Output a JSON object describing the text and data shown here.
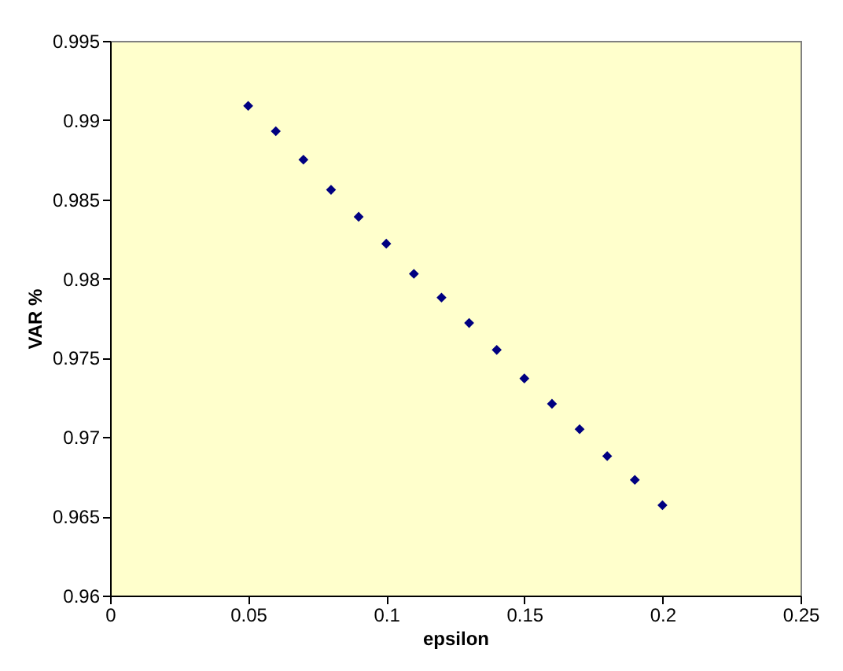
{
  "chart_data": {
    "type": "scatter",
    "xlabel": "epsilon",
    "ylabel": "VAR %",
    "x": [
      0.05,
      0.06,
      0.07,
      0.08,
      0.09,
      0.1,
      0.11,
      0.12,
      0.13,
      0.14,
      0.15,
      0.16,
      0.17,
      0.18,
      0.19,
      0.2
    ],
    "series": [
      {
        "color": "#000080",
        "values": [
          0.9909,
          0.9893,
          0.9875,
          0.9856,
          0.9839,
          0.9822,
          0.9803,
          0.9788,
          0.9772,
          0.9755,
          0.9737,
          0.9721,
          0.9705,
          0.9688,
          0.9673,
          0.9657
        ]
      }
    ],
    "xlim": [
      0,
      0.25
    ],
    "xticks": [
      0,
      0.05,
      0.1,
      0.15,
      0.2,
      0.25
    ],
    "ylim": [
      0.96,
      0.995
    ],
    "yticks": [
      0.96,
      0.965,
      0.97,
      0.975,
      0.98,
      0.985,
      0.99,
      0.995
    ],
    "marker": "diamond",
    "grid": false,
    "legend": false
  }
}
